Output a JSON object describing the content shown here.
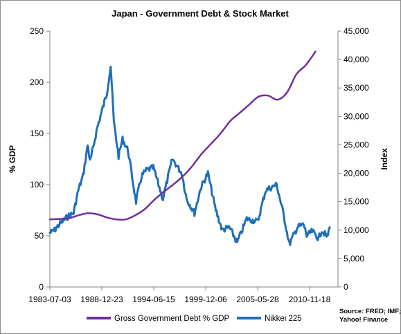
{
  "chart_data": {
    "type": "line",
    "title": "Japan - Government Debt & Stock Market",
    "ylabel_left": "% GDP",
    "ylabel_right": "Index",
    "ylim_left": [
      0,
      250
    ],
    "ylim_right": [
      0,
      45000
    ],
    "yticks_left": [
      "0",
      "50",
      "100",
      "150",
      "200",
      "250"
    ],
    "yticks_right": [
      "0",
      "5,000",
      "10,000",
      "15,000",
      "20,000",
      "25,000",
      "30,000",
      "35,000",
      "40,000",
      "45,000"
    ],
    "xticks": [
      "1983-07-03",
      "1988-12-23",
      "1994-06-15",
      "1999-12-06",
      "2005-05-28",
      "2010-11-18"
    ],
    "grid": false,
    "legend": "bottom",
    "source_note": [
      "Source: FRED; IMF;",
      "Yahoo! Finance"
    ],
    "series": [
      {
        "name": "Gross Government Debt % GDP",
        "axis": "left",
        "color": "#7030a0",
        "points": [
          [
            "1983-07",
            66
          ],
          [
            "1984-07",
            66.5
          ],
          [
            "1985-07",
            67
          ],
          [
            "1986-07",
            70
          ],
          [
            "1987-07",
            72
          ],
          [
            "1988-07",
            71
          ],
          [
            "1989-07",
            68
          ],
          [
            "1990-07",
            66
          ],
          [
            "1991-07",
            66
          ],
          [
            "1992-07",
            70
          ],
          [
            "1993-07",
            76
          ],
          [
            "1994-07",
            85
          ],
          [
            "1995-07",
            93
          ],
          [
            "1996-07",
            100
          ],
          [
            "1997-07",
            108
          ],
          [
            "1998-07",
            118
          ],
          [
            "1999-07",
            130
          ],
          [
            "2000-07",
            140
          ],
          [
            "2001-07",
            150
          ],
          [
            "2002-07",
            162
          ],
          [
            "2003-07",
            170
          ],
          [
            "2004-07",
            178
          ],
          [
            "2005-07",
            186
          ],
          [
            "2006-07",
            187
          ],
          [
            "2007-07",
            183
          ],
          [
            "2008-07",
            190
          ],
          [
            "2009-07",
            208
          ],
          [
            "2010-07",
            217
          ],
          [
            "2011-07",
            230
          ]
        ]
      },
      {
        "name": "Nikkei 225",
        "axis": "right",
        "color": "#1f6fb8",
        "points": [
          [
            "1983-07",
            9500
          ],
          [
            "1984-01",
            10000
          ],
          [
            "1984-07",
            11000
          ],
          [
            "1985-01",
            11800
          ],
          [
            "1985-07",
            12500
          ],
          [
            "1986-01",
            13000
          ],
          [
            "1986-07",
            17000
          ],
          [
            "1987-01",
            19500
          ],
          [
            "1987-07",
            25000
          ],
          [
            "1987-10",
            22000
          ],
          [
            "1988-01",
            24000
          ],
          [
            "1988-07",
            28000
          ],
          [
            "1989-01",
            31000
          ],
          [
            "1989-07",
            34000
          ],
          [
            "1989-12",
            38900
          ],
          [
            "1990-04",
            29000
          ],
          [
            "1990-10",
            23000
          ],
          [
            "1991-03",
            26000
          ],
          [
            "1991-10",
            24000
          ],
          [
            "1992-08",
            15000
          ],
          [
            "1993-03",
            19500
          ],
          [
            "1993-09",
            20500
          ],
          [
            "1994-06",
            21000
          ],
          [
            "1995-06",
            15500
          ],
          [
            "1996-06",
            22500
          ],
          [
            "1997-06",
            20000
          ],
          [
            "1997-12",
            15500
          ],
          [
            "1998-10",
            13000
          ],
          [
            "1999-06",
            17500
          ],
          [
            "2000-03",
            20000
          ],
          [
            "2000-12",
            14000
          ],
          [
            "2001-09",
            10000
          ],
          [
            "2002-06",
            10500
          ],
          [
            "2003-04",
            7800
          ],
          [
            "2004-04",
            12000
          ],
          [
            "2005-06",
            11500
          ],
          [
            "2006-04",
            17000
          ],
          [
            "2007-06",
            18000
          ],
          [
            "2008-03",
            12500
          ],
          [
            "2008-10",
            7500
          ],
          [
            "2009-08",
            10500
          ],
          [
            "2010-04",
            11000
          ],
          [
            "2010-08",
            9000
          ],
          [
            "2011-03",
            9800
          ],
          [
            "2011-11",
            8500
          ],
          [
            "2012-03",
            10000
          ],
          [
            "2012-10",
            8800
          ],
          [
            "2013-01",
            10500
          ]
        ]
      }
    ]
  }
}
